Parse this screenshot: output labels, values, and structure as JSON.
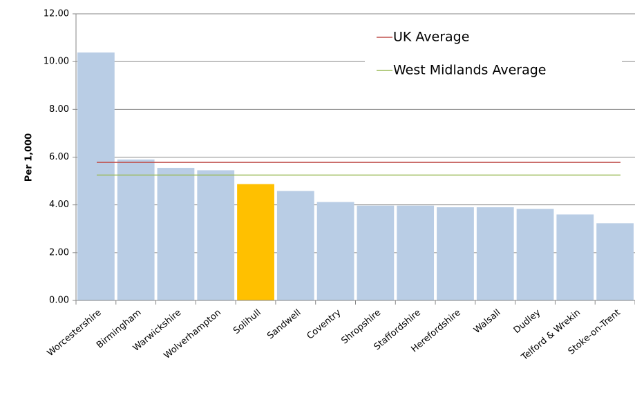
{
  "chart_data": {
    "type": "bar",
    "y_label": "Per 1,000",
    "categories": [
      "Worcestershire",
      "Birmingham",
      "Warwickshire",
      "Wolverhampton",
      "Solihull",
      "Sandwell",
      "Coventry",
      "Shropshire",
      "Staffordshire",
      "Herefordshire",
      "Walsall",
      "Dudley",
      "Telford & Wrekin",
      "Stoke-on-Trent"
    ],
    "values": [
      10.38,
      5.9,
      5.55,
      5.45,
      4.87,
      4.58,
      4.12,
      3.97,
      3.97,
      3.9,
      3.9,
      3.83,
      3.6,
      3.23
    ],
    "colors": [
      "#b9cde5",
      "#b9cde5",
      "#b9cde5",
      "#b9cde5",
      "#ffc000",
      "#b9cde5",
      "#b9cde5",
      "#b9cde5",
      "#b9cde5",
      "#b9cde5",
      "#b9cde5",
      "#b9cde5",
      "#b9cde5",
      "#b9cde5"
    ],
    "reference_lines": [
      {
        "name": "UK Average",
        "value": 5.78,
        "color": "#c0504d"
      },
      {
        "name": "West Midlands Average",
        "value": 5.25,
        "color": "#9bbb59"
      }
    ],
    "ylim": [
      0,
      12
    ],
    "yticks": [
      {
        "value": 0,
        "label": "0.00"
      },
      {
        "value": 2,
        "label": "2.00"
      },
      {
        "value": 4,
        "label": "4.00"
      },
      {
        "value": 6,
        "label": "6.00"
      },
      {
        "value": 8,
        "label": "8.00"
      },
      {
        "value": 10,
        "label": "10.00"
      },
      {
        "value": 12,
        "label": "12.00"
      }
    ],
    "grid": true,
    "legend": "top-right"
  }
}
